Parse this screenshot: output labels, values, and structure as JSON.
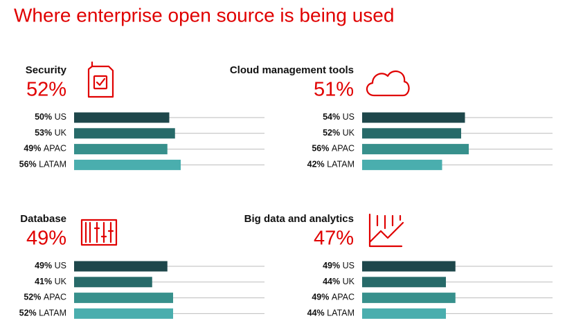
{
  "title": "Where enterprise open source is being used",
  "chart_data": [
    {
      "type": "bar",
      "orientation": "horizontal",
      "title": "Security",
      "total": 52,
      "total_label": "52%",
      "categories": [
        "US",
        "UK",
        "APAC",
        "LATAM"
      ],
      "values": [
        50,
        53,
        49,
        56
      ],
      "value_labels": [
        "50%",
        "53%",
        "49%",
        "56%"
      ],
      "colors": [
        "#1e474b",
        "#276a69",
        "#37908c",
        "#4aaeae"
      ],
      "xlim": [
        0,
        100
      ]
    },
    {
      "type": "bar",
      "orientation": "horizontal",
      "title": "Cloud management tools",
      "total": 51,
      "total_label": "51%",
      "categories": [
        "US",
        "UK",
        "APAC",
        "LATAM"
      ],
      "values": [
        54,
        52,
        56,
        42
      ],
      "value_labels": [
        "54%",
        "52%",
        "56%",
        "42%"
      ],
      "colors": [
        "#1e474b",
        "#276a69",
        "#37908c",
        "#4aaeae"
      ],
      "xlim": [
        0,
        100
      ]
    },
    {
      "type": "bar",
      "orientation": "horizontal",
      "title": "Database",
      "total": 49,
      "total_label": "49%",
      "categories": [
        "US",
        "UK",
        "APAC",
        "LATAM"
      ],
      "values": [
        49,
        41,
        52,
        52
      ],
      "value_labels": [
        "49%",
        "41%",
        "52%",
        "52%"
      ],
      "colors": [
        "#1e474b",
        "#276a69",
        "#37908c",
        "#4aaeae"
      ],
      "xlim": [
        0,
        100
      ]
    },
    {
      "type": "bar",
      "orientation": "horizontal",
      "title": "Big data and analytics",
      "total": 47,
      "total_label": "47%",
      "categories": [
        "US",
        "UK",
        "APAC",
        "LATAM"
      ],
      "values": [
        49,
        44,
        49,
        44
      ],
      "value_labels": [
        "49%",
        "44%",
        "49%",
        "44%"
      ],
      "colors": [
        "#1e474b",
        "#276a69",
        "#37908c",
        "#4aaeae"
      ],
      "xlim": [
        0,
        100
      ]
    }
  ]
}
